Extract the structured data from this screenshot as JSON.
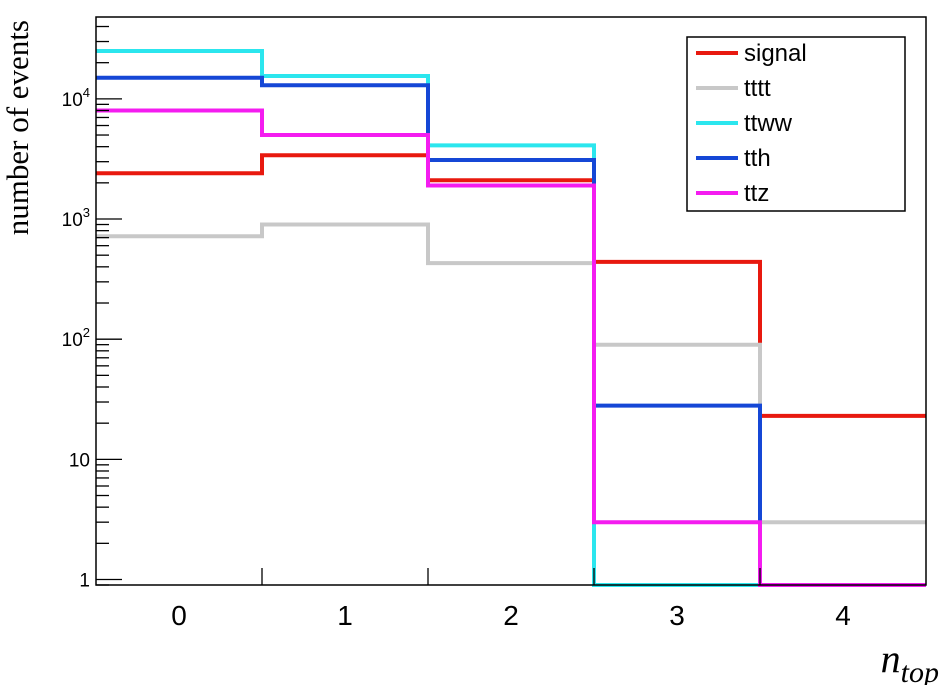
{
  "chart_data": {
    "type": "line",
    "drawstyle": "step",
    "title": "",
    "xlabel": "n",
    "xlabel_subscript": "top",
    "ylabel": "number of events",
    "y_scale": "log",
    "ylim": [
      0.9,
      48000
    ],
    "xlim": [
      -0.5,
      4.5
    ],
    "grid": false,
    "legend_position": "top-right",
    "categories": [
      "0",
      "1",
      "2",
      "3",
      "4"
    ],
    "x": [
      0,
      1,
      2,
      3,
      4
    ],
    "y_ticks": [
      {
        "value": 1,
        "base": "1",
        "exp": ""
      },
      {
        "value": 10,
        "base": "10",
        "exp": ""
      },
      {
        "value": 100,
        "base": "10",
        "exp": "2"
      },
      {
        "value": 1000,
        "base": "10",
        "exp": "3"
      },
      {
        "value": 10000,
        "base": "10",
        "exp": "4"
      }
    ],
    "series": [
      {
        "name": "signal",
        "color": "#e8190f",
        "values": [
          2400,
          3400,
          2100,
          440,
          23
        ]
      },
      {
        "name": "tttt",
        "color": "#c8c8c8",
        "values": [
          720,
          900,
          430,
          90,
          3
        ]
      },
      {
        "name": "ttww",
        "color": "#2be6ee",
        "values": [
          25000,
          15500,
          4100,
          0.9,
          0.9
        ]
      },
      {
        "name": "tth",
        "color": "#1547d6",
        "values": [
          15000,
          13000,
          3100,
          28,
          0.9
        ]
      },
      {
        "name": "ttz",
        "color": "#f41cf0",
        "values": [
          8000,
          5000,
          1900,
          3,
          0.9
        ]
      }
    ]
  }
}
